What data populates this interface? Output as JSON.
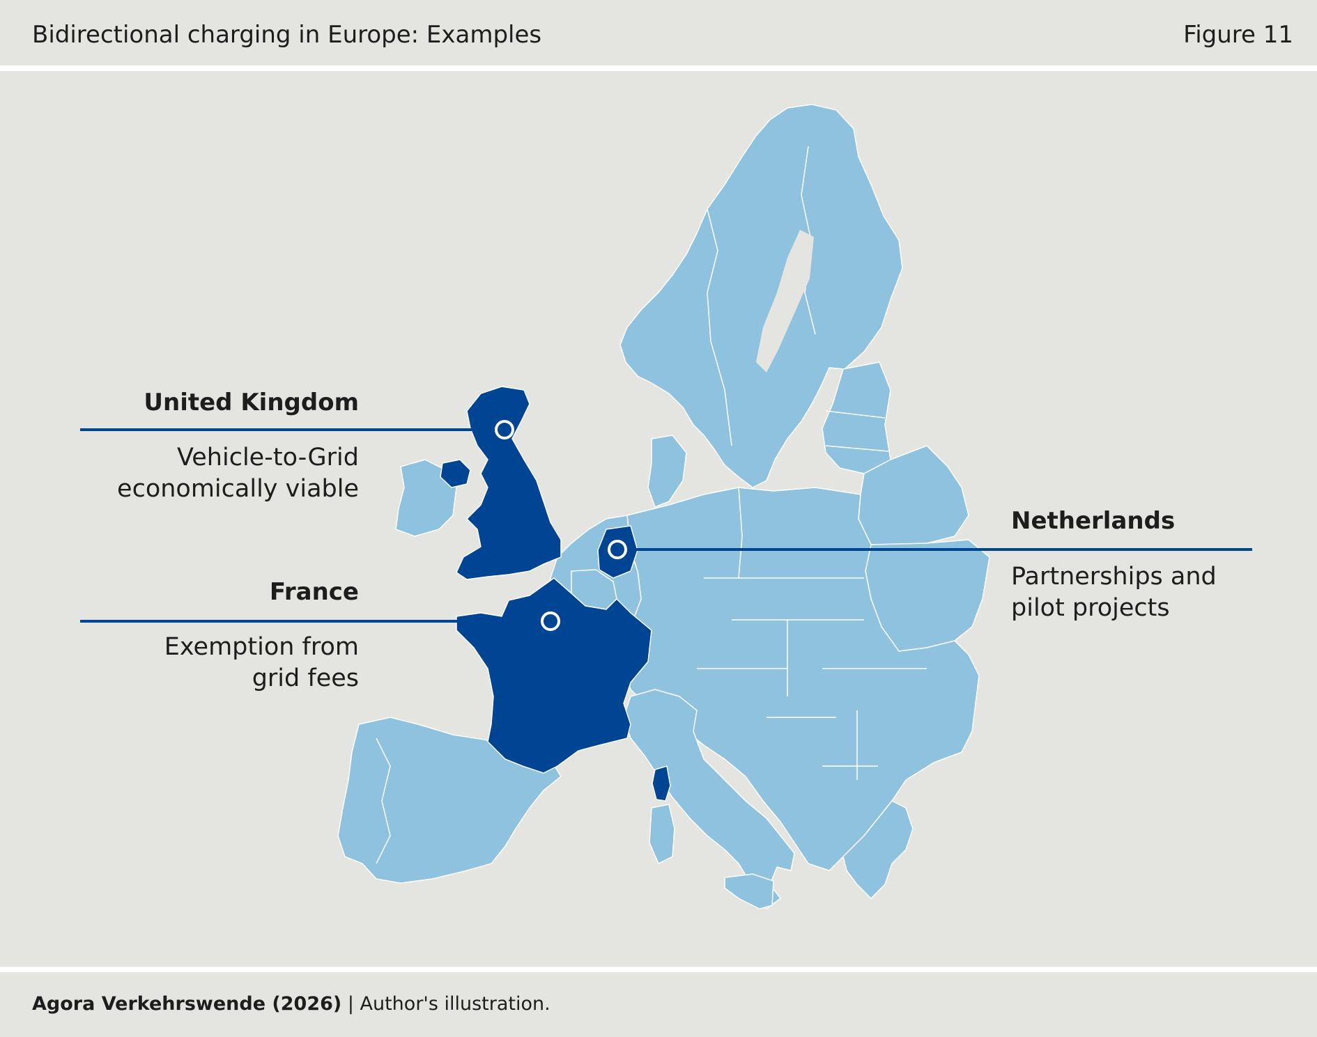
{
  "header": {
    "title": "Bidirectional charging in Europe: Examples",
    "figure": "Figure 11"
  },
  "colors": {
    "background": "#e4e4e0",
    "other_countries": "#8fc2df",
    "highlighted_countries": "#004494",
    "leader_line": "#004494",
    "border": "#ffffff"
  },
  "callouts": {
    "uk": {
      "country": "United Kingdom",
      "line1": "Vehicle-to-Grid",
      "line2": "economically viable"
    },
    "france": {
      "country": "France",
      "line1": "Exemption from",
      "line2": "grid fees"
    },
    "netherlands": {
      "country": "Netherlands",
      "line1": "Partnerships and",
      "line2": "pilot projects"
    }
  },
  "footer": {
    "source": "Agora Verkehrswende (2026)",
    "separator": " | ",
    "note": "Author's illustration."
  }
}
